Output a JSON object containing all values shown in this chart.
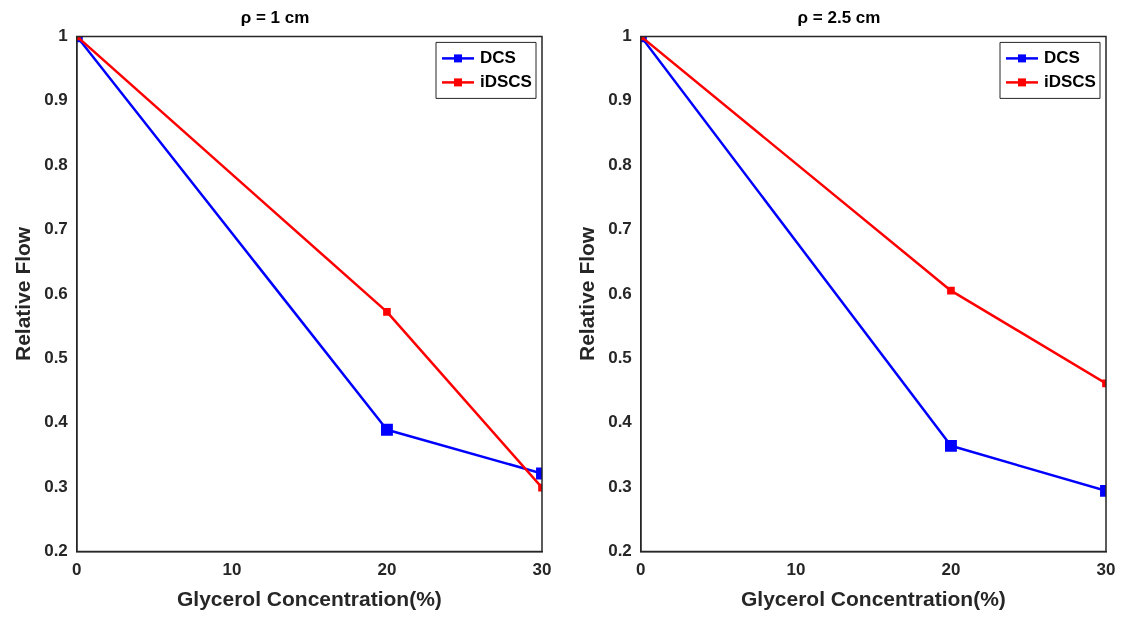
{
  "chart_data": [
    {
      "type": "line",
      "title": "ρ = 1 cm",
      "xlabel": "Glycerol Concentration(%)",
      "ylabel": "Relative Flow",
      "x": [
        0,
        20,
        30
      ],
      "series": [
        {
          "name": "DCS",
          "color": "#0000ff",
          "values": [
            1,
            0.389,
            0.321
          ]
        },
        {
          "name": "iDSCS",
          "color": "#ff0000",
          "values": [
            1,
            0.572,
            0.299
          ]
        }
      ],
      "xlim": [
        0,
        30
      ],
      "xticks": [
        0,
        10,
        20,
        30
      ],
      "ylim": [
        0.2,
        1
      ],
      "yticks": [
        0.2,
        0.3,
        0.4,
        0.5,
        0.6,
        0.7,
        0.8,
        0.9,
        1
      ],
      "grid": false,
      "legend": "top right",
      "marker": "square",
      "line_style": "solid"
    },
    {
      "type": "line",
      "title": "ρ = 2.5 cm",
      "xlabel": "Glycerol Concentration(%)",
      "ylabel": "Relative Flow",
      "x": [
        0,
        20,
        30
      ],
      "series": [
        {
          "name": "DCS",
          "color": "#0000ff",
          "values": [
            1,
            0.364,
            0.294
          ]
        },
        {
          "name": "iDSCS",
          "color": "#ff0000",
          "values": [
            1,
            0.605,
            0.461
          ]
        }
      ],
      "xlim": [
        0,
        30
      ],
      "xticks": [
        0,
        10,
        20,
        30
      ],
      "ylim": [
        0.2,
        1
      ],
      "yticks": [
        0.2,
        0.3,
        0.4,
        0.5,
        0.6,
        0.7,
        0.8,
        0.9,
        1
      ],
      "grid": false,
      "legend": "top right",
      "marker": "square",
      "line_style": "solid"
    }
  ]
}
